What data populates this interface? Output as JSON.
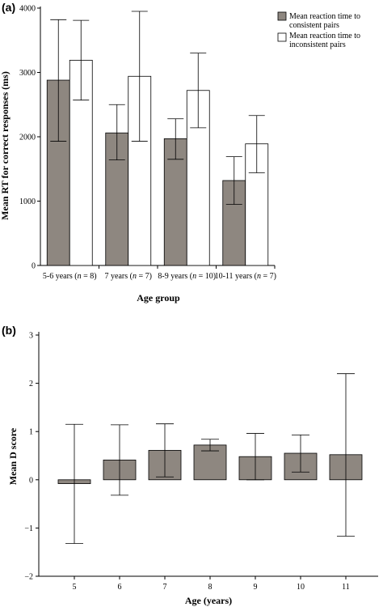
{
  "chart_data": [
    {
      "panel_label": "(a)",
      "type": "bar",
      "ylabel": "Mean RT for correct responses (ms)",
      "xlabel": "Age group",
      "ylim": [
        0,
        4000
      ],
      "yticks": [
        0,
        1000,
        2000,
        3000,
        4000
      ],
      "categories": [
        {
          "pre": "5-6 years (",
          "n": "n",
          "post": " = 8)"
        },
        {
          "pre": "7 years (",
          "n": "n",
          "post": " = 7)"
        },
        {
          "pre": "8-9 years (",
          "n": "n",
          "post": " = 10)"
        },
        {
          "pre": "10-11 years (",
          "n": "n",
          "post": " = 7)"
        }
      ],
      "legend_position": "top-right",
      "series": [
        {
          "name": [
            "Mean reaction time to",
            "consistent pairs"
          ],
          "color": "#8e8780",
          "values": [
            2880,
            2060,
            1970,
            1320
          ],
          "err_high": [
            3820,
            2500,
            2280,
            1690
          ],
          "err_low": [
            1930,
            1640,
            1650,
            950
          ]
        },
        {
          "name": [
            "Mean reaction time to",
            "inconsistent pairs"
          ],
          "color": "#ffffff",
          "values": [
            3190,
            2940,
            2720,
            1890
          ],
          "err_high": [
            3810,
            3950,
            3300,
            2330
          ],
          "err_low": [
            2570,
            1930,
            2140,
            1440
          ]
        }
      ]
    },
    {
      "panel_label": "(b)",
      "type": "bar",
      "ylabel": "Mean D score",
      "xlabel": "Age (years)",
      "ylim": [
        -2,
        3
      ],
      "yticks": [
        -2,
        -1,
        0,
        1,
        2,
        3
      ],
      "categories": [
        "5",
        "6",
        "7",
        "8",
        "9",
        "10",
        "11"
      ],
      "series": [
        {
          "color": "#8e8780",
          "values": [
            -0.08,
            0.41,
            0.61,
            0.72,
            0.48,
            0.55,
            0.52
          ],
          "err_high": [
            1.15,
            1.14,
            1.16,
            0.84,
            0.96,
            0.93,
            2.2
          ],
          "err_low": [
            -1.32,
            -0.32,
            0.06,
            0.6,
            0.0,
            0.16,
            -1.17
          ]
        }
      ]
    }
  ]
}
